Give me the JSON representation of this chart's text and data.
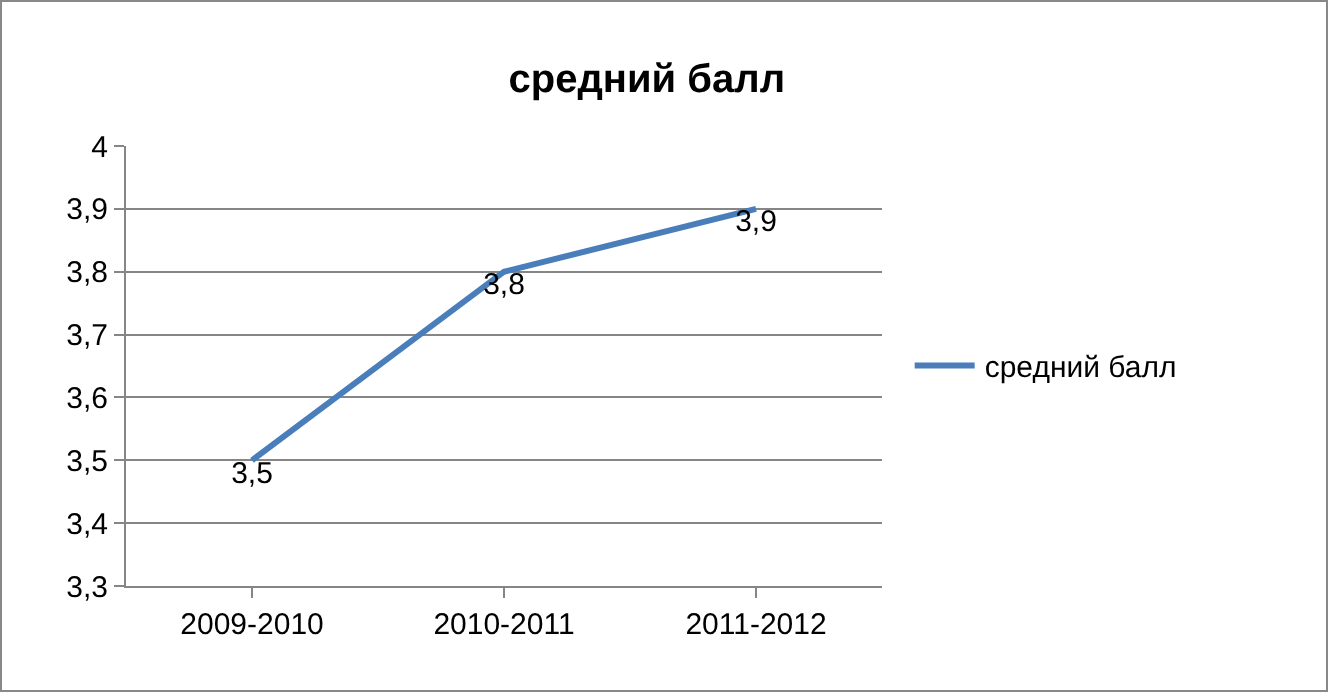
{
  "chart_data": {
    "type": "line",
    "title": "средний балл",
    "categories": [
      "2009-2010",
      "2010-2011",
      "2011-2012"
    ],
    "series": [
      {
        "name": "средний балл",
        "color": "#4a7ebb",
        "values": [
          3.5,
          3.8,
          3.9
        ],
        "value_labels": [
          "3,5",
          "3,8",
          "3,9"
        ]
      }
    ],
    "ylim": [
      3.3,
      4
    ],
    "yticks": [
      {
        "value": 3.3,
        "label": "3,3"
      },
      {
        "value": 3.4,
        "label": "3,4"
      },
      {
        "value": 3.5,
        "label": "3,5"
      },
      {
        "value": 3.6,
        "label": "3,6"
      },
      {
        "value": 3.7,
        "label": "3,7"
      },
      {
        "value": 3.8,
        "label": "3,8"
      },
      {
        "value": 3.9,
        "label": "3,9"
      },
      {
        "value": 4,
        "label": "4"
      }
    ],
    "grid": "y",
    "legend": "right",
    "marker": "none",
    "line_style": "solid"
  }
}
